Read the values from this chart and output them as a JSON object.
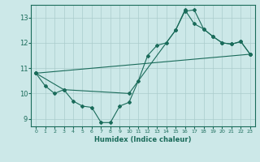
{
  "title": "",
  "xlabel": "Humidex (Indice chaleur)",
  "background_color": "#cce8e8",
  "grid_color": "#aacccc",
  "line_color": "#1a6b5a",
  "xlim": [
    -0.5,
    23.5
  ],
  "ylim": [
    8.7,
    13.5
  ],
  "yticks": [
    9,
    10,
    11,
    12,
    13
  ],
  "xticks": [
    0,
    1,
    2,
    3,
    4,
    5,
    6,
    7,
    8,
    9,
    10,
    11,
    12,
    13,
    14,
    15,
    16,
    17,
    18,
    19,
    20,
    21,
    22,
    23
  ],
  "line1_x": [
    0,
    1,
    2,
    3,
    4,
    5,
    6,
    7,
    8,
    9,
    10,
    11,
    12,
    13,
    14,
    15,
    16,
    17,
    18,
    19,
    20,
    21,
    22,
    23
  ],
  "line1_y": [
    10.8,
    10.3,
    10.0,
    10.15,
    9.7,
    9.5,
    9.45,
    8.85,
    8.85,
    9.5,
    9.65,
    10.5,
    11.5,
    11.9,
    12.0,
    12.5,
    13.25,
    13.3,
    12.55,
    12.25,
    12.0,
    11.95,
    12.05,
    11.55
  ],
  "line2_x": [
    0,
    3,
    10,
    15,
    16,
    17,
    18,
    19,
    20,
    21,
    22,
    23
  ],
  "line2_y": [
    10.8,
    10.15,
    10.0,
    12.5,
    13.3,
    12.75,
    12.55,
    12.25,
    12.0,
    11.95,
    12.05,
    11.55
  ],
  "line3_x": [
    0,
    23
  ],
  "line3_y": [
    10.8,
    11.55
  ]
}
